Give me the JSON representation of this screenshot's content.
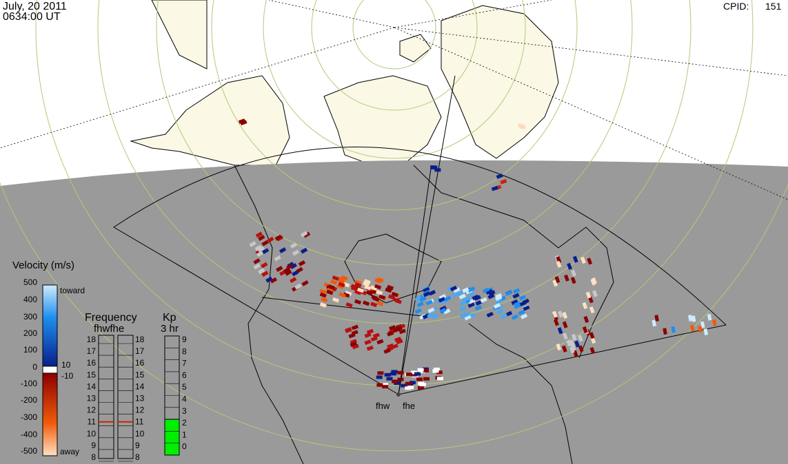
{
  "header": {
    "date": "July, 20 2011",
    "time": "0634:00 UT",
    "cpid_label": "CPID:",
    "cpid_value": "151"
  },
  "radars": [
    "fhw",
    "fhe"
  ],
  "velocity_scale": {
    "title": "Velocity (m/s)",
    "ticks": [
      "500",
      "400",
      "300",
      "200",
      "100",
      "0",
      "-100",
      "-200",
      "-300",
      "-400",
      "-500"
    ],
    "toward_label": "toward",
    "away_label": "away",
    "threshold_pos": "10",
    "threshold_neg": "-10",
    "colors": {
      "toward_max": "#cfeafc",
      "toward_mid": "#1d8ff0",
      "toward_min": "#0a1e8a",
      "away_min": "#8b0000",
      "away_mid": "#f05a0a",
      "away_max": "#ffe0c0"
    }
  },
  "frequency": {
    "title": "Frequency",
    "subtitle": "fhwfhe",
    "labels": [
      "18",
      "17",
      "16",
      "15",
      "14",
      "13",
      "12",
      "11",
      "10",
      "9",
      "8"
    ],
    "fhw_value": 11,
    "fhe_value": 11,
    "marker_color": "#cc2200"
  },
  "kp": {
    "title": "Kp",
    "subtitle": "3 hr",
    "labels": [
      "9",
      "8",
      "7",
      "6",
      "5",
      "4",
      "3",
      "2",
      "1",
      "0"
    ],
    "value": 3,
    "fill_color": "#00ee00"
  },
  "map_colors": {
    "ocean": "#ffffff",
    "land": "#fbf8e6",
    "night": "#9a9a9a",
    "grid": "#b5c878"
  }
}
